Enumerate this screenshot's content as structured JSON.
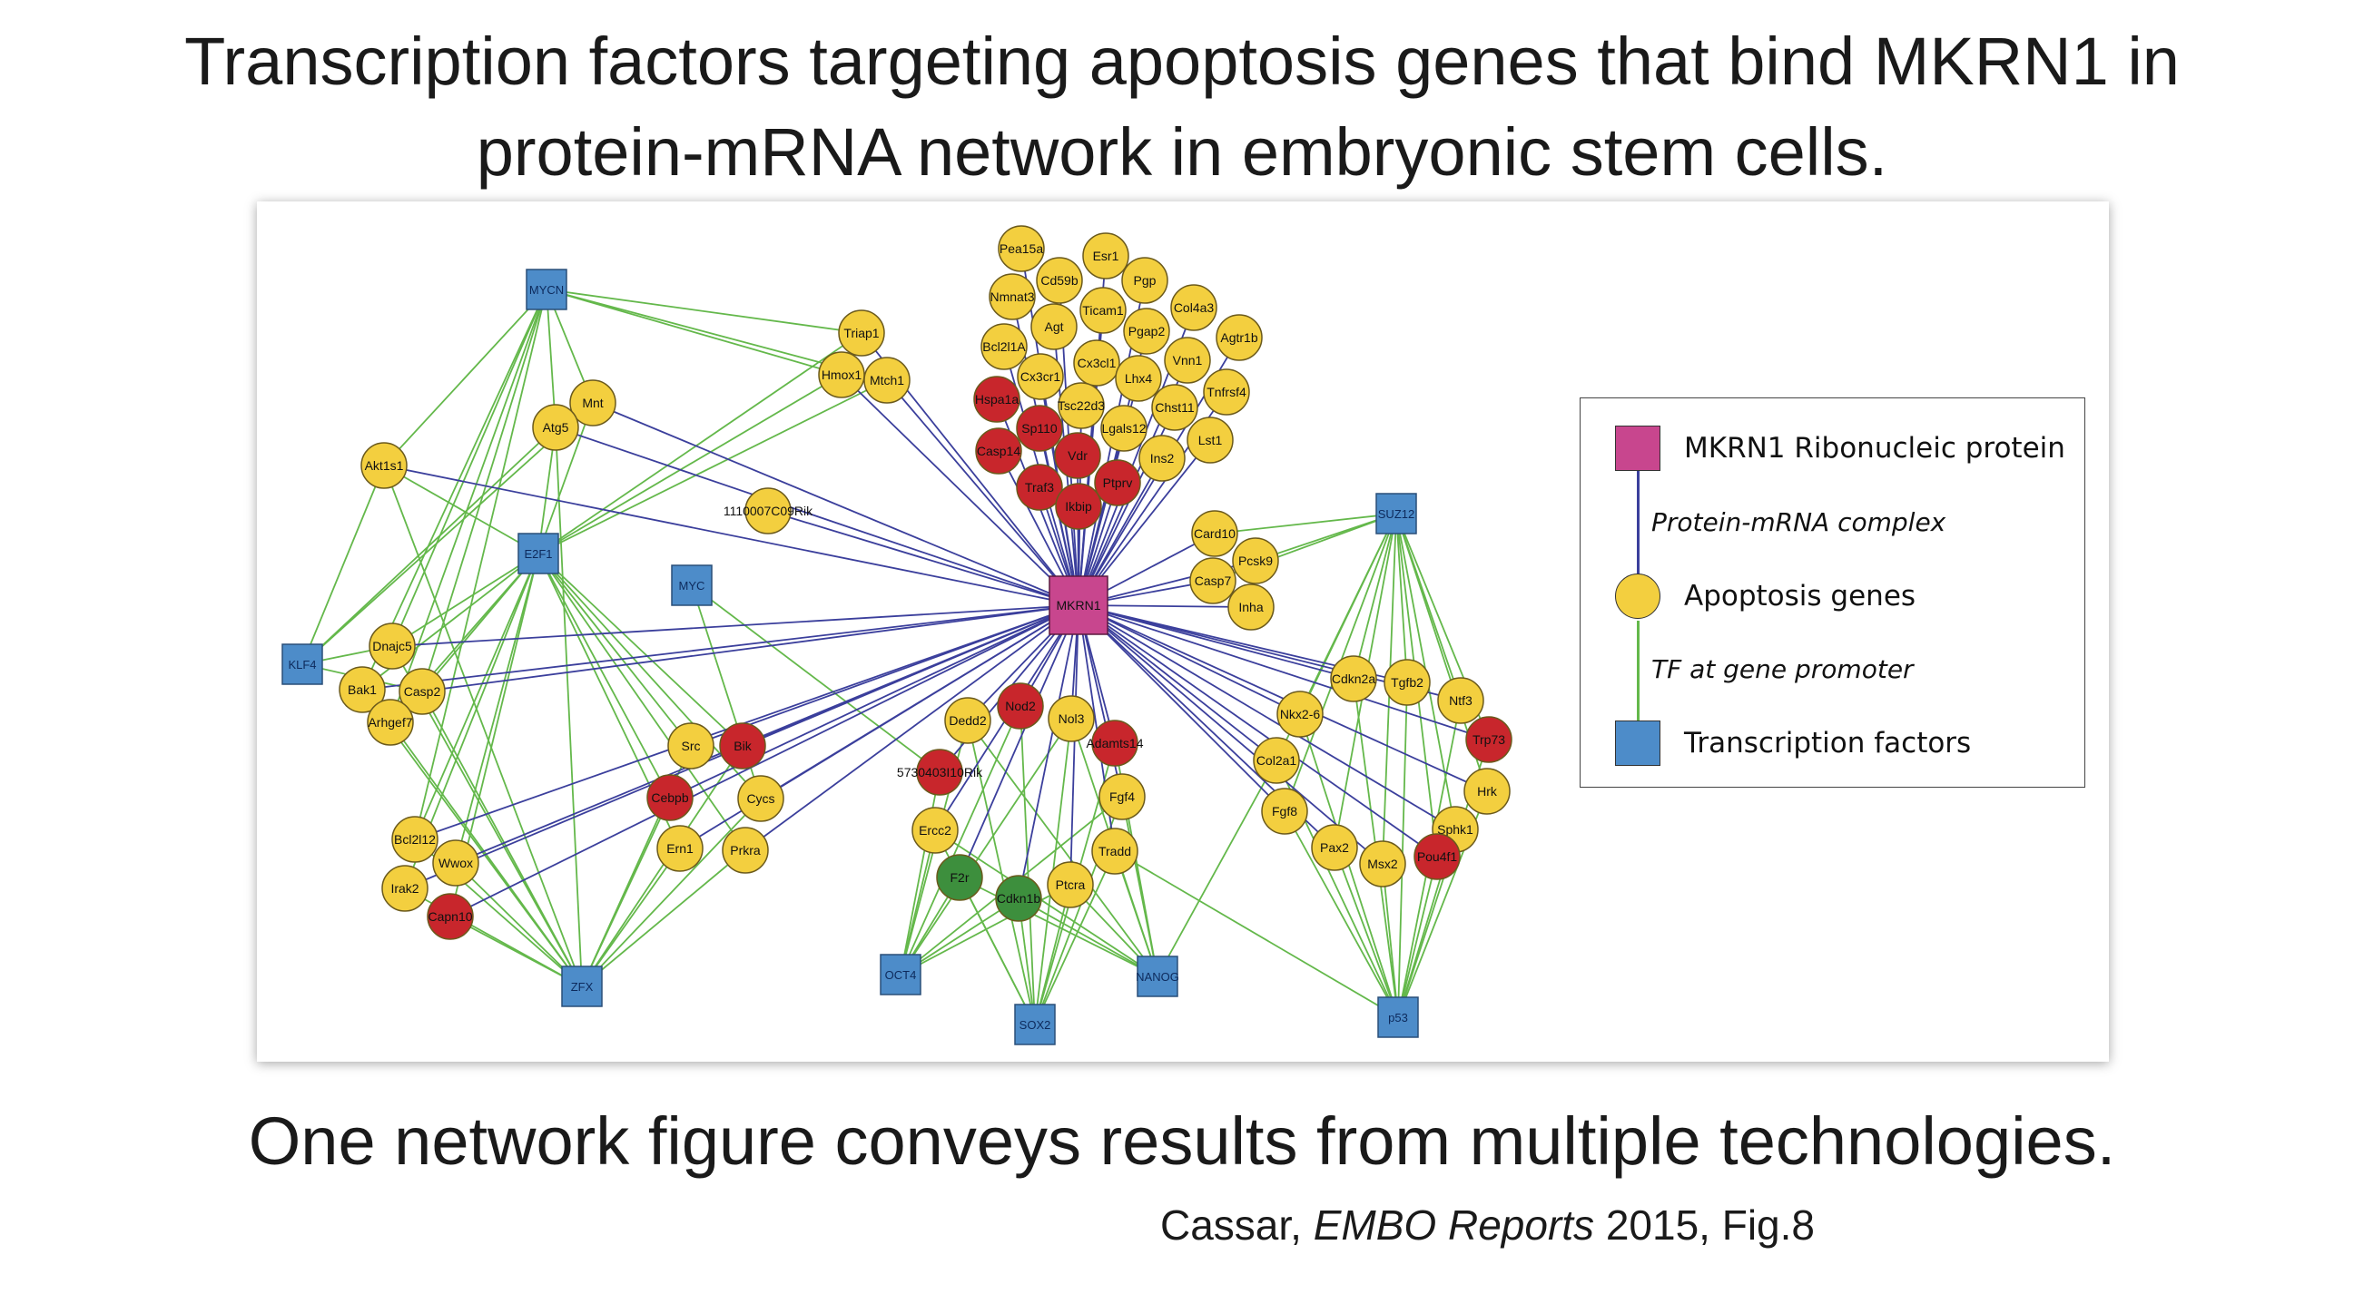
{
  "title": {
    "line1": "Transcription factors targeting apoptosis genes that bind MKRN1 in",
    "line2": "protein-mRNA network in embryonic stem cells."
  },
  "subtitle": "One network figure conveys results from multiple technologies.",
  "citation": {
    "author": "Cassar, ",
    "journal": "EMBO Reports",
    "rest": " 2015, Fig.8"
  },
  "legend": {
    "mkrn1": "MKRN1 Ribonucleic protein",
    "protein_mrna": "Protein-mRNA complex",
    "apoptosis": "Apoptosis genes",
    "tf_promoter": "TF at gene promoter",
    "tf": "Transcription factors"
  },
  "colors": {
    "mkrn1": "#c8468e",
    "tf": "#4d8cc9",
    "gene_yellow": "#f3cf3f",
    "gene_red": "#c8262c",
    "gene_green": "#3d8f3d",
    "edge_protein_mrna": "#3b3f9c",
    "edge_tf": "#64b84b"
  },
  "network": {
    "hub": "MKRN1",
    "tfs": [
      "MYCN",
      "E2F1",
      "MYC",
      "KLF4",
      "ZFX",
      "OCT4",
      "SOX2",
      "NANOG",
      "SUZ12",
      "p53"
    ],
    "genes": [
      {
        "id": "Pea15a",
        "c": "y"
      },
      {
        "id": "Esr1",
        "c": "y"
      },
      {
        "id": "Cd59b",
        "c": "y"
      },
      {
        "id": "Pgp",
        "c": "y"
      },
      {
        "id": "Nmnat3",
        "c": "y"
      },
      {
        "id": "Col4a3",
        "c": "y"
      },
      {
        "id": "Agt",
        "c": "y"
      },
      {
        "id": "Ticam1",
        "c": "y"
      },
      {
        "id": "Agtr1b",
        "c": "y"
      },
      {
        "id": "Bcl2l1A",
        "c": "y"
      },
      {
        "id": "Pgap2",
        "c": "y"
      },
      {
        "id": "Cx3cr1",
        "c": "y"
      },
      {
        "id": "Cx3cl1",
        "c": "y"
      },
      {
        "id": "Vnn1",
        "c": "y"
      },
      {
        "id": "Lhx4",
        "c": "y"
      },
      {
        "id": "Tnfrsf4",
        "c": "y"
      },
      {
        "id": "Hspa1a",
        "c": "r"
      },
      {
        "id": "Tsc22d3",
        "c": "y"
      },
      {
        "id": "Chst11",
        "c": "y"
      },
      {
        "id": "Sp110",
        "c": "r"
      },
      {
        "id": "Lgals12",
        "c": "y"
      },
      {
        "id": "Lst1",
        "c": "y"
      },
      {
        "id": "Casp14",
        "c": "r"
      },
      {
        "id": "Vdr",
        "c": "r"
      },
      {
        "id": "Ins2",
        "c": "y"
      },
      {
        "id": "Traf3",
        "c": "r"
      },
      {
        "id": "Ptprv",
        "c": "r"
      },
      {
        "id": "Ikbip",
        "c": "r"
      },
      {
        "id": "Triap1",
        "c": "y"
      },
      {
        "id": "Hmox1",
        "c": "y"
      },
      {
        "id": "Mtch1",
        "c": "y"
      },
      {
        "id": "Mnt",
        "c": "y"
      },
      {
        "id": "Atg5",
        "c": "y"
      },
      {
        "id": "Akt1s1",
        "c": "y"
      },
      {
        "id": "1110007C09Rik",
        "c": "y"
      },
      {
        "id": "Card10",
        "c": "y"
      },
      {
        "id": "Pcsk9",
        "c": "y"
      },
      {
        "id": "Casp7",
        "c": "y"
      },
      {
        "id": "Inha",
        "c": "y"
      },
      {
        "id": "Dnajc5",
        "c": "y"
      },
      {
        "id": "Bak1",
        "c": "y"
      },
      {
        "id": "Casp2",
        "c": "y"
      },
      {
        "id": "Arhgef7",
        "c": "y"
      },
      {
        "id": "Src",
        "c": "y"
      },
      {
        "id": "Bik",
        "c": "r"
      },
      {
        "id": "Cebpb",
        "c": "r"
      },
      {
        "id": "Cycs",
        "c": "y"
      },
      {
        "id": "Ern1",
        "c": "y"
      },
      {
        "id": "Prkra",
        "c": "y"
      },
      {
        "id": "Bcl2l12",
        "c": "y"
      },
      {
        "id": "Wwox",
        "c": "y"
      },
      {
        "id": "Irak2",
        "c": "y"
      },
      {
        "id": "Capn10",
        "c": "r"
      },
      {
        "id": "Dedd2",
        "c": "y"
      },
      {
        "id": "Nod2",
        "c": "r"
      },
      {
        "id": "Nol3",
        "c": "y"
      },
      {
        "id": "Adamts14",
        "c": "r"
      },
      {
        "id": "5730403I10Rik",
        "c": "r"
      },
      {
        "id": "Fgf4",
        "c": "y"
      },
      {
        "id": "Ercc2",
        "c": "y"
      },
      {
        "id": "Tradd",
        "c": "y"
      },
      {
        "id": "F2r",
        "c": "g"
      },
      {
        "id": "Cdkn1b",
        "c": "g"
      },
      {
        "id": "Ptcra",
        "c": "y"
      },
      {
        "id": "Cdkn2a",
        "c": "y"
      },
      {
        "id": "Tgfb2",
        "c": "y"
      },
      {
        "id": "Ntf3",
        "c": "y"
      },
      {
        "id": "Nkx2-6",
        "c": "y"
      },
      {
        "id": "Trp73",
        "c": "r"
      },
      {
        "id": "Col2a1",
        "c": "y"
      },
      {
        "id": "Hrk",
        "c": "y"
      },
      {
        "id": "Fgf8",
        "c": "y"
      },
      {
        "id": "Sphk1",
        "c": "y"
      },
      {
        "id": "Pax2",
        "c": "y"
      },
      {
        "id": "Msx2",
        "c": "y"
      },
      {
        "id": "Pou4f1",
        "c": "r"
      }
    ],
    "tf_edges": {
      "MYCN": [
        "Triap1",
        "Hmox1",
        "Mtch1",
        "Mnt",
        "Atg5",
        "Akt1s1",
        "Dnajc5",
        "Casp2",
        "Arhgef7",
        "Bcl2l12",
        "Bak1"
      ],
      "E2F1": [
        "Akt1s1",
        "Mnt",
        "Atg5",
        "Hmox1",
        "Triap1",
        "Mtch1",
        "Dnajc5",
        "Casp2",
        "Bak1",
        "Arhgef7",
        "Src",
        "Bik",
        "Cebpb",
        "Cycs",
        "Ern1",
        "Prkra",
        "Wwox",
        "Bcl2l12",
        "Irak2",
        "Capn10"
      ],
      "MYC": [
        "5730403I10Rik",
        "Cycs"
      ],
      "KLF4": [
        "Akt1s1",
        "Dnajc5",
        "Casp2",
        "Mnt",
        "Atg5"
      ],
      "ZFX": [
        "Akt1s1",
        "Dnajc5",
        "Bak1",
        "Casp2",
        "Arhgef7",
        "Src",
        "Bik",
        "Cebpb",
        "Cycs",
        "Ern1",
        "Prkra",
        "Bcl2l12",
        "Wwox",
        "Irak2",
        "Capn10",
        "Atg5"
      ],
      "OCT4": [
        "Dedd2",
        "Nod2",
        "Nol3",
        "Ercc2",
        "F2r",
        "Cdkn1b",
        "Ptcra",
        "Fgf4",
        "5730403I10Rik"
      ],
      "SOX2": [
        "Dedd2",
        "Nod2",
        "Nol3",
        "Adamts14",
        "Ercc2",
        "F2r",
        "Cdkn1b",
        "Ptcra",
        "Fgf4",
        "Tradd"
      ],
      "NANOG": [
        "Nol3",
        "Adamts14",
        "Fgf4",
        "Tradd",
        "Ptcra",
        "Cdkn1b",
        "F2r",
        "Ercc2",
        "Dedd2",
        "Col2a1"
      ],
      "SUZ12": [
        "Card10",
        "Casp7",
        "Pcsk9",
        "Cdkn2a",
        "Tgfb2",
        "Ntf3",
        "Nkx2-6",
        "Trp73",
        "Col2a1",
        "Hrk",
        "Fgf8",
        "Sphk1",
        "Pax2",
        "Msx2",
        "Pou4f1"
      ],
      "p53": [
        "Cdkn2a",
        "Tgfb2",
        "Ntf3",
        "Nkx2-6",
        "Trp73",
        "Col2a1",
        "Hrk",
        "Fgf8",
        "Sphk1",
        "Pax2",
        "Msx2",
        "Pou4f1",
        "Tradd"
      ]
    }
  }
}
